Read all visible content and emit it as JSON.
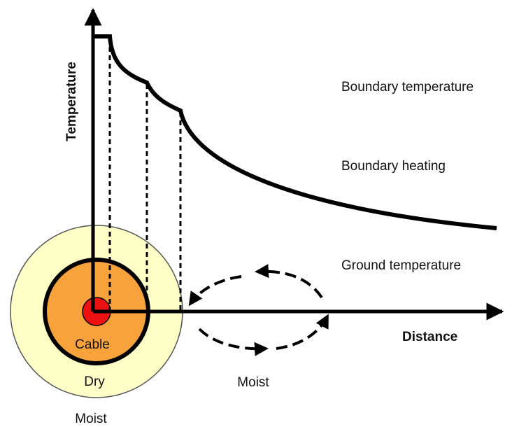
{
  "axes": {
    "y_label": "Temperature",
    "x_label": "Distance"
  },
  "labels": {
    "boundary_temperature": "Boundary temperature",
    "boundary_heating": "Boundary heating",
    "ground_temperature": "Ground temperature"
  },
  "zones": {
    "cable": "Cable",
    "dry": "Dry",
    "moist_flow": "Moist",
    "moist_outer": "Moist"
  }
}
